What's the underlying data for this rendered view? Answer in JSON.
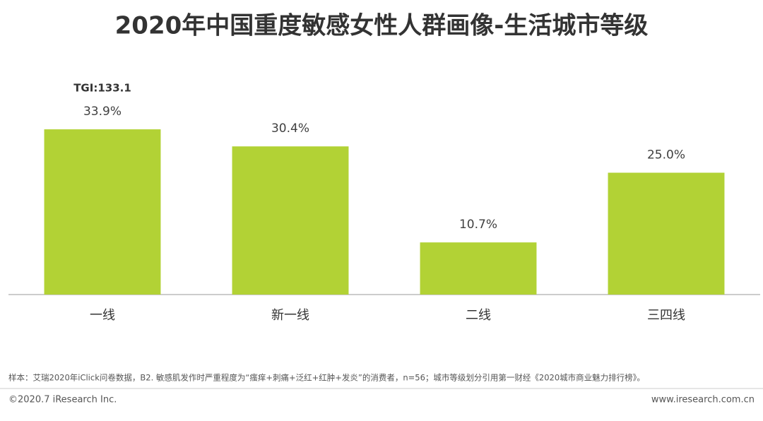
{
  "chart_data": {
    "type": "bar",
    "title": "2020年中国重度敏感女性人群画像-生活城市等级",
    "categories": [
      "一线",
      "新一线",
      "二线",
      "三四线"
    ],
    "values": [
      33.9,
      30.4,
      10.7,
      25.0
    ],
    "value_labels": [
      "33.9%",
      "30.4%",
      "10.7%",
      "25.0%"
    ],
    "annotation": "TGI:133.1",
    "color": "#b2d235",
    "ylim": [
      0,
      40
    ]
  },
  "footer": {
    "note": "样本：艾瑞2020年iClick问卷数据，B2. 敏感肌发作时严重程度为“瘙痒+刺痛+泛红+红肿+发炎”的消费者，n=56；城市等级划分引用第一财经《2020城市商业魅力排行榜》。",
    "copyright": "©2020.7 iResearch Inc.",
    "website": "www.iresearch.com.cn"
  }
}
